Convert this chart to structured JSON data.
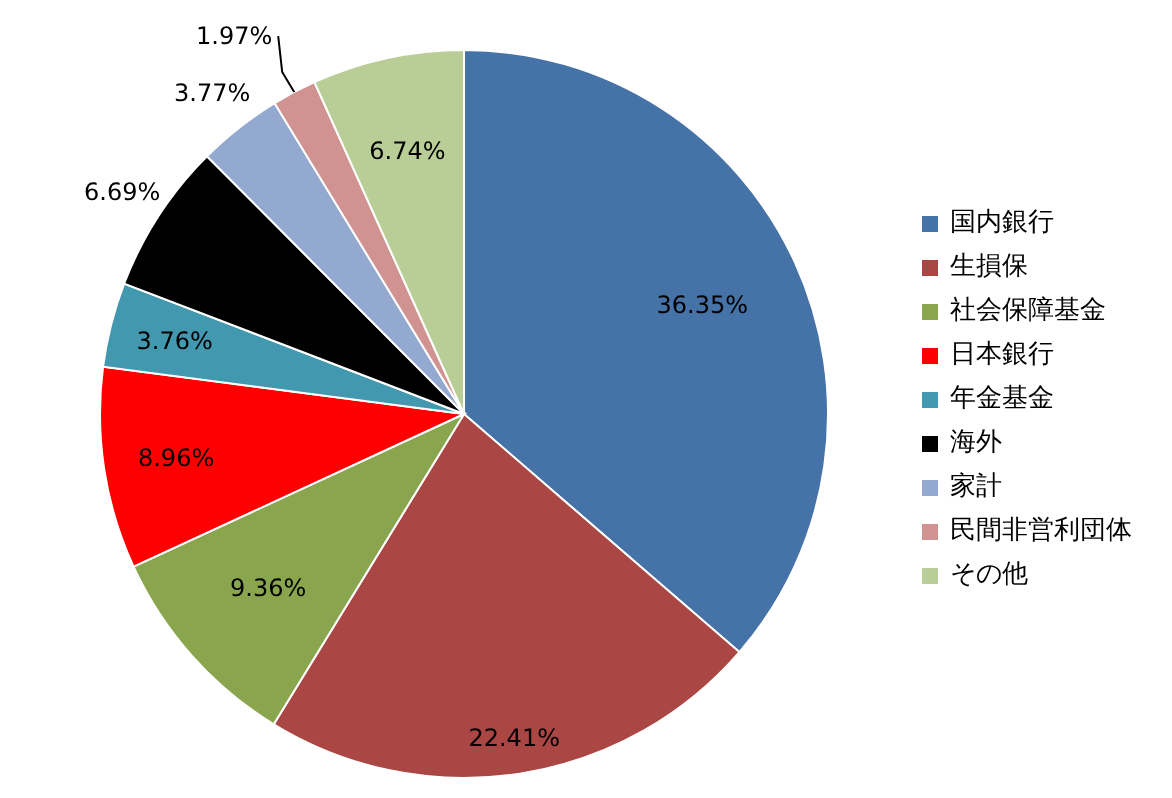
{
  "chart_data": {
    "type": "pie",
    "categories": [
      "国内銀行",
      "生損保",
      "社会保障基金",
      "日本銀行",
      "年金基金",
      "海外",
      "家計",
      "民間非営利団体",
      "その他"
    ],
    "values": [
      36.35,
      22.41,
      9.36,
      8.96,
      3.76,
      6.69,
      3.77,
      1.97,
      6.74
    ],
    "colors": [
      "#4572a7",
      "#aa4643",
      "#89a54e",
      "#ff0000",
      "#4198af",
      "#000000",
      "#93a9cf",
      "#d19392",
      "#b9cd96"
    ],
    "value_labels": [
      "36.35%",
      "22.41%",
      "9.36%",
      "8.96%",
      "3.76%",
      "6.69%",
      "3.77%",
      "1.97%",
      "6.74%"
    ],
    "legend": "right"
  }
}
